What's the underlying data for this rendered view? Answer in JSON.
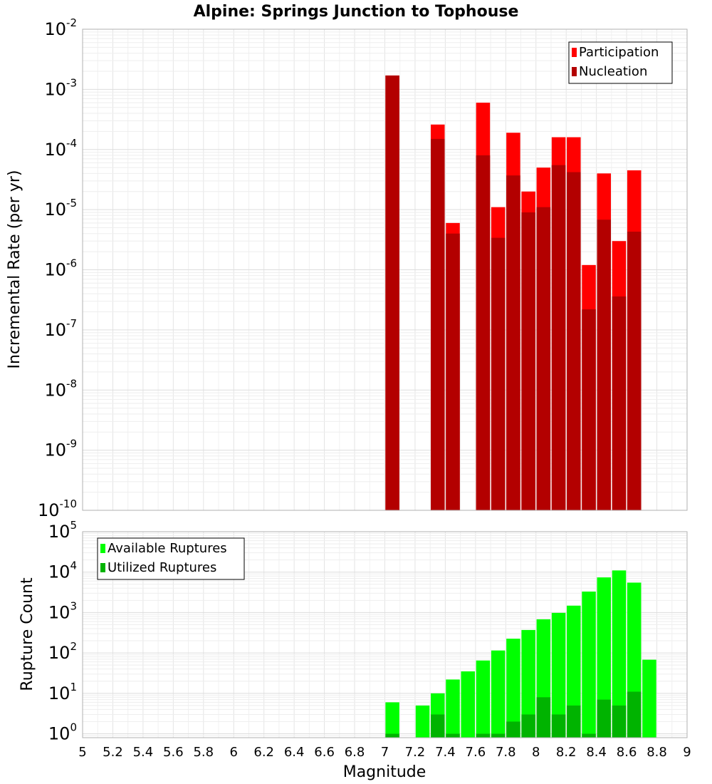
{
  "chart_data": {
    "title": "Alpine: Springs Junction to Tophouse",
    "xlabel": "Magnitude",
    "xlim": [
      5,
      9
    ],
    "xticks": [
      "5",
      "5.2",
      "5.4",
      "5.6",
      "5.8",
      "6",
      "6.2",
      "6.4",
      "6.6",
      "6.8",
      "7",
      "7.2",
      "7.4",
      "7.6",
      "7.8",
      "8",
      "8.2",
      "8.4",
      "8.6",
      "8.8",
      "9"
    ],
    "grid": true,
    "panels": [
      {
        "type": "bar",
        "ylabel": "Incremental Rate (per yr)",
        "yscale": "log",
        "ylim": [
          1e-10,
          0.01
        ],
        "yticks": [
          {
            "base": "10",
            "exp": "-2"
          },
          {
            "base": "10",
            "exp": "-3"
          },
          {
            "base": "10",
            "exp": "-4"
          },
          {
            "base": "10",
            "exp": "-5"
          },
          {
            "base": "10",
            "exp": "-6"
          },
          {
            "base": "10",
            "exp": "-7"
          },
          {
            "base": "10",
            "exp": "-8"
          },
          {
            "base": "10",
            "exp": "-9"
          },
          {
            "base": "10",
            "exp": "-10"
          }
        ],
        "legend_position": "top-right",
        "series": [
          {
            "name": "Participation",
            "color": "#ff0000",
            "x": [
              7.05,
              7.35,
              7.45,
              7.65,
              7.75,
              7.85,
              7.95,
              8.05,
              8.15,
              8.25,
              8.35,
              8.45,
              8.55,
              8.65
            ],
            "values": [
              0.0017,
              0.00026,
              6e-06,
              0.0006,
              1.1e-05,
              0.00019,
              2e-05,
              5e-05,
              0.00016,
              0.00016,
              1.2e-06,
              4e-05,
              3e-06,
              4.5e-05
            ]
          },
          {
            "name": "Nucleation",
            "color": "#b30000",
            "x": [
              7.05,
              7.35,
              7.45,
              7.65,
              7.75,
              7.85,
              7.95,
              8.05,
              8.15,
              8.25,
              8.35,
              8.45,
              8.55,
              8.65
            ],
            "values": [
              0.0017,
              0.00015,
              4e-06,
              8e-05,
              3.4e-06,
              3.7e-05,
              9e-06,
              1.1e-05,
              5.5e-05,
              4.2e-05,
              2.2e-07,
              6.8e-06,
              3.6e-07,
              4.3e-06
            ]
          }
        ]
      },
      {
        "type": "bar",
        "ylabel": "Rupture Count",
        "yscale": "log",
        "ylim": [
          0.8,
          100000
        ],
        "yticks": [
          {
            "base": "10",
            "exp": "5"
          },
          {
            "base": "10",
            "exp": "4"
          },
          {
            "base": "10",
            "exp": "3"
          },
          {
            "base": "10",
            "exp": "2"
          },
          {
            "base": "10",
            "exp": "1"
          },
          {
            "base": "10",
            "exp": "0"
          }
        ],
        "legend_position": "top-left",
        "series": [
          {
            "name": "Available Ruptures",
            "color": "#00ff00",
            "x": [
              7.05,
              7.25,
              7.35,
              7.45,
              7.55,
              7.65,
              7.75,
              7.85,
              7.95,
              8.05,
              8.15,
              8.25,
              8.35,
              8.45,
              8.55,
              8.65,
              8.75
            ],
            "values": [
              6,
              5,
              10,
              22,
              35,
              65,
              115,
              225,
              370,
              680,
              980,
              1480,
              3300,
              7400,
              11000,
              5500,
              68
            ]
          },
          {
            "name": "Utilized Ruptures",
            "color": "#00b300",
            "x": [
              7.05,
              7.35,
              7.45,
              7.65,
              7.75,
              7.85,
              7.95,
              8.05,
              8.15,
              8.25,
              8.35,
              8.45,
              8.55,
              8.65
            ],
            "values": [
              1,
              3,
              1,
              1,
              1,
              2,
              3,
              8,
              3,
              5,
              1,
              7,
              5,
              11
            ]
          }
        ]
      }
    ]
  }
}
